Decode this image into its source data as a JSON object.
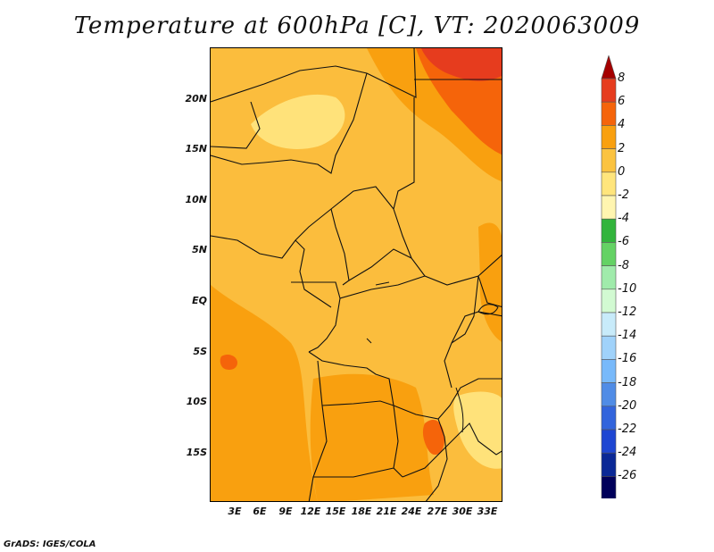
{
  "title": "Temperature at 600hPa [C], VT: 2020063009",
  "credit": "GrADS: IGES/COLA",
  "latitude_labels": [
    "20N",
    "15N",
    "10N",
    "5N",
    "EQ",
    "5S",
    "10S",
    "15S"
  ],
  "longitude_labels": [
    "3E",
    "6E",
    "9E",
    "12E",
    "15E",
    "18E",
    "21E",
    "24E",
    "27E",
    "30E",
    "33E"
  ],
  "colorbar": {
    "labels": [
      "8",
      "6",
      "4",
      "2",
      "0",
      "-2",
      "-4",
      "-6",
      "-8",
      "-10",
      "-12",
      "-14",
      "-16",
      "-18",
      "-20",
      "-22",
      "-24",
      "-26"
    ],
    "colors": [
      "#a50000",
      "#e63c1e",
      "#f5640a",
      "#f9a00f",
      "#fbc340",
      "#ffe57c",
      "#fff5b0",
      "#32b43c",
      "#64d264",
      "#a0ebab",
      "#d2fad2",
      "#c8ebfa",
      "#a0d2fa",
      "#78b9fa",
      "#508ce6",
      "#3264dc",
      "#1e46d2",
      "#0a2896",
      "#00005a",
      "#e1e1ff"
    ]
  },
  "map_colors": {
    "base": "#fbbd3d",
    "warm": "#f9a00f",
    "hot": "#f5640a",
    "hottest": "#e63c1e",
    "cool": "#ffe27a",
    "border": "#111111"
  }
}
